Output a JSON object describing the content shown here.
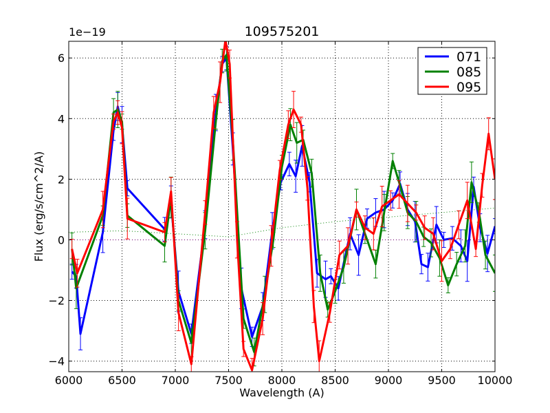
{
  "chart_data": {
    "type": "line",
    "title": "109575201",
    "xlabel": "Wavelength (A)",
    "ylabel": "Flux (erg/s/cm^2/A)",
    "y_exponent_label": "1e−19",
    "xlim": [
      6000,
      10000
    ],
    "ylim": [
      -4.35,
      6.55
    ],
    "x_ticks": [
      6000,
      6500,
      7000,
      7500,
      8000,
      8500,
      9000,
      9500,
      10000
    ],
    "y_ticks": [
      -4,
      -2,
      0,
      2,
      4,
      6
    ],
    "grid": true,
    "legend_position": "top-right",
    "series": [
      {
        "name": "071",
        "color": "#0000ff",
        "x": [
          6030,
          6070,
          6110,
          6320,
          6420,
          6460,
          6500,
          6550,
          6900,
          6960,
          7030,
          7150,
          7280,
          7380,
          7440,
          7480,
          7540,
          7620,
          7720,
          7820,
          7910,
          7990,
          8070,
          8130,
          8190,
          8260,
          8330,
          8410,
          8460,
          8530,
          8640,
          8720,
          8800,
          8880,
          8960,
          9040,
          9110,
          9180,
          9250,
          9310,
          9370,
          9450,
          9520,
          9600,
          9680,
          9740,
          9800,
          9860,
          9930,
          10000
        ],
        "y": [
          -1.05,
          -1.2,
          -3.1,
          0.25,
          3.6,
          4.4,
          3.8,
          1.7,
          0.35,
          1.25,
          -1.7,
          -3.1,
          0.5,
          4.2,
          5.8,
          6.0,
          3.0,
          -1.6,
          -3.2,
          -2.2,
          0.3,
          1.9,
          2.5,
          2.1,
          3.1,
          1.9,
          -1.1,
          -1.3,
          -1.2,
          -1.6,
          0.2,
          -0.5,
          0.7,
          0.9,
          1.0,
          1.3,
          1.85,
          1.0,
          0.6,
          -0.8,
          -0.9,
          0.5,
          0.0,
          0.05,
          -0.2,
          -0.7,
          1.75,
          0.4,
          -0.45,
          0.45
        ]
      },
      {
        "name": "085",
        "color": "#008000",
        "x": [
          6030,
          6070,
          6320,
          6420,
          6460,
          6500,
          6550,
          6900,
          6960,
          7030,
          7150,
          7280,
          7380,
          7440,
          7480,
          7540,
          7640,
          7740,
          7840,
          7920,
          8000,
          8080,
          8140,
          8200,
          8280,
          8360,
          8430,
          8500,
          8580,
          8700,
          8780,
          8880,
          8960,
          9040,
          9100,
          9180,
          9260,
          9330,
          9400,
          9480,
          9560,
          9640,
          9720,
          9780,
          9850,
          9910,
          10000
        ],
        "y": [
          -0.3,
          -1.6,
          0.8,
          4.2,
          4.3,
          3.9,
          0.8,
          -0.2,
          1.4,
          -2.0,
          -3.4,
          0.3,
          3.9,
          5.9,
          6.1,
          3.3,
          -2.6,
          -3.7,
          -1.8,
          0.0,
          2.4,
          3.8,
          3.2,
          3.3,
          2.2,
          -1.1,
          -2.3,
          -1.7,
          -0.9,
          1.0,
          0.2,
          -0.8,
          0.9,
          2.6,
          1.9,
          0.9,
          0.6,
          0.1,
          -0.1,
          -0.6,
          -1.5,
          -0.8,
          -0.2,
          1.9,
          0.9,
          -0.5,
          -1.1
        ]
      },
      {
        "name": "095",
        "color": "#ff0000",
        "x": [
          6030,
          6080,
          6320,
          6420,
          6460,
          6500,
          6550,
          6900,
          6960,
          7030,
          7150,
          7280,
          7360,
          7420,
          7470,
          7510,
          7580,
          7640,
          7720,
          7820,
          7900,
          7980,
          8060,
          8110,
          8180,
          8240,
          8300,
          8350,
          8450,
          8540,
          8620,
          8700,
          8780,
          8860,
          8940,
          9020,
          9100,
          9180,
          9260,
          9340,
          9420,
          9500,
          9580,
          9660,
          9740,
          9820,
          9880,
          9940,
          10000
        ],
        "y": [
          -0.3,
          -1.1,
          1.0,
          3.9,
          4.2,
          3.7,
          0.7,
          0.25,
          1.6,
          -2.4,
          -4.1,
          0.9,
          4.2,
          5.2,
          6.6,
          5.8,
          0.0,
          -3.6,
          -4.3,
          -2.6,
          -0.2,
          2.3,
          3.8,
          4.3,
          3.8,
          1.7,
          -2.2,
          -4.0,
          -2.4,
          -0.5,
          -0.2,
          1.0,
          0.4,
          0.2,
          1.1,
          1.3,
          1.5,
          1.2,
          0.9,
          0.4,
          0.2,
          -0.7,
          -0.3,
          0.5,
          1.3,
          -0.3,
          1.8,
          3.5,
          2.0
        ]
      },
      {
        "name": "",
        "color": "#008000",
        "style": "dotted",
        "x": [
          6000,
          6500,
          7000,
          7500,
          8000,
          8500,
          9000,
          9500,
          10000
        ],
        "y": [
          0.25,
          0.3,
          0.2,
          0.1,
          0.4,
          0.6,
          0.75,
          0.9,
          1.05
        ]
      },
      {
        "name": "",
        "color": "#800080",
        "style": "dotted",
        "x": [
          6000,
          10000
        ],
        "y": [
          0.0,
          0.0
        ]
      }
    ]
  }
}
